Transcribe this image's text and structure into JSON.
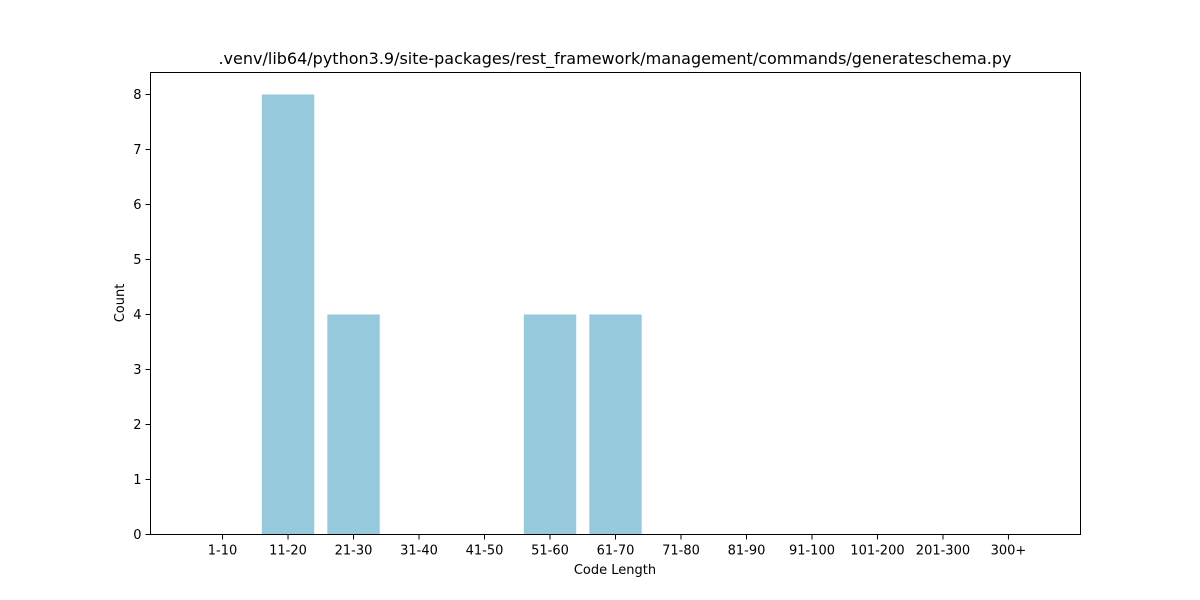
{
  "chart_data": {
    "type": "bar",
    "title": ".venv/lib64/python3.9/site-packages/rest_framework/management/commands/generateschema.py",
    "xlabel": "Code Length",
    "ylabel": "Count",
    "categories": [
      "1-10",
      "11-20",
      "21-30",
      "31-40",
      "41-50",
      "51-60",
      "61-70",
      "71-80",
      "81-90",
      "91-100",
      "101-200",
      "201-300",
      "300+"
    ],
    "values": [
      0,
      8,
      4,
      0,
      0,
      4,
      4,
      0,
      0,
      0,
      0,
      0,
      0
    ],
    "ylim": [
      0,
      8.4
    ],
    "yticks": [
      0,
      1,
      2,
      3,
      4,
      5,
      6,
      7,
      8
    ],
    "grid": false,
    "bar_color": "#96c9dc"
  }
}
